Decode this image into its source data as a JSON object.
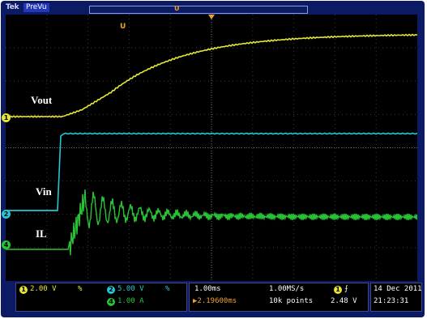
{
  "brand": "Tek",
  "mode": "PreVu",
  "trigger_marker": "U",
  "labels": {
    "vout": "Vout",
    "vin": "Vin",
    "il": "IL"
  },
  "channels": [
    {
      "id": "1",
      "scale": "2.00 V",
      "color": "#e6e636"
    },
    {
      "id": "2",
      "scale": "5.00 V",
      "color": "#23c7d6"
    },
    {
      "id": "4",
      "scale": "1.00 A",
      "color": "#29c236"
    }
  ],
  "timebase": {
    "scale": "1.00ms",
    "sample_rate": "1.00MS/s",
    "position": "2.19600ms",
    "record": "10k points"
  },
  "trigger": {
    "source": "1",
    "level": "2.48 V",
    "slope": "rising"
  },
  "datetime": {
    "date": "14 Dec 2011",
    "time": "21:23:31"
  },
  "colors": {
    "vout": "#e6e636",
    "vin": "#23c7d6",
    "il": "#29c236",
    "trigger": "#f0a030",
    "bezel": "#0c1a63"
  }
}
